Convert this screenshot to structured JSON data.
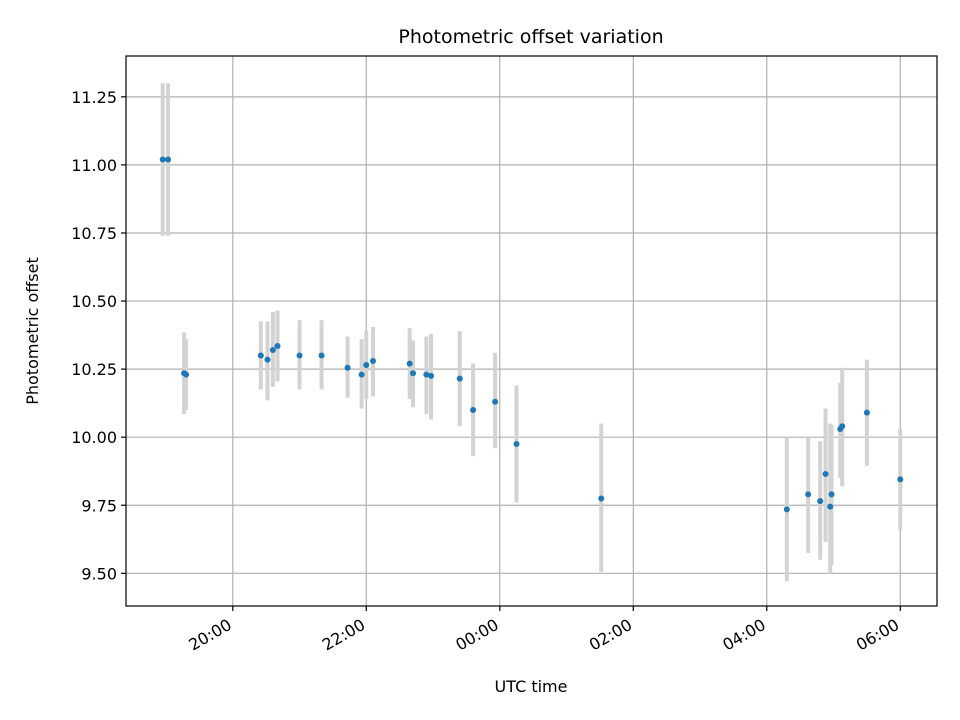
{
  "chart_data": {
    "type": "scatter",
    "title": "Photometric offset variation",
    "xlabel": "UTC time",
    "ylabel": "Photometric offset",
    "x_unit": "hours since 00:00 (negative = previous evening)",
    "xlim": [
      -5.6,
      6.55
    ],
    "ylim": [
      9.38,
      11.4
    ],
    "x_ticks": [
      {
        "value": -4,
        "label": "20:00"
      },
      {
        "value": -2,
        "label": "22:00"
      },
      {
        "value": 0,
        "label": "00:00"
      },
      {
        "value": 2,
        "label": "02:00"
      },
      {
        "value": 4,
        "label": "04:00"
      },
      {
        "value": 6,
        "label": "06:00"
      }
    ],
    "y_ticks": [
      {
        "value": 9.5,
        "label": "9.50"
      },
      {
        "value": 9.75,
        "label": "9.75"
      },
      {
        "value": 10.0,
        "label": "10.00"
      },
      {
        "value": 10.25,
        "label": "10.25"
      },
      {
        "value": 10.5,
        "label": "10.50"
      },
      {
        "value": 10.75,
        "label": "10.75"
      },
      {
        "value": 11.0,
        "label": "11.00"
      },
      {
        "value": 11.25,
        "label": "11.25"
      }
    ],
    "grid": true,
    "colors": {
      "point": "#1f77b4",
      "errorbar": "#d3d3d3",
      "grid": "#b0b0b0"
    },
    "points": [
      {
        "x": -5.05,
        "y": 11.02,
        "lo": 10.74,
        "hi": 11.3
      },
      {
        "x": -4.97,
        "y": 11.02,
        "lo": 10.74,
        "hi": 11.3
      },
      {
        "x": -4.73,
        "y": 10.235,
        "lo": 10.085,
        "hi": 10.385
      },
      {
        "x": -4.7,
        "y": 10.23,
        "lo": 10.1,
        "hi": 10.36
      },
      {
        "x": -3.58,
        "y": 10.3,
        "lo": 10.175,
        "hi": 10.425
      },
      {
        "x": -3.48,
        "y": 10.285,
        "lo": 10.135,
        "hi": 10.425
      },
      {
        "x": -3.4,
        "y": 10.32,
        "lo": 10.185,
        "hi": 10.46
      },
      {
        "x": -3.33,
        "y": 10.335,
        "lo": 10.205,
        "hi": 10.465
      },
      {
        "x": -3.0,
        "y": 10.3,
        "lo": 10.175,
        "hi": 10.43
      },
      {
        "x": -2.67,
        "y": 10.3,
        "lo": 10.175,
        "hi": 10.43
      },
      {
        "x": -2.28,
        "y": 10.255,
        "lo": 10.145,
        "hi": 10.37
      },
      {
        "x": -2.07,
        "y": 10.23,
        "lo": 10.105,
        "hi": 10.36
      },
      {
        "x": -2.0,
        "y": 10.265,
        "lo": 10.14,
        "hi": 10.39
      },
      {
        "x": -1.9,
        "y": 10.28,
        "lo": 10.15,
        "hi": 10.405
      },
      {
        "x": -1.35,
        "y": 10.27,
        "lo": 10.14,
        "hi": 10.4
      },
      {
        "x": -1.3,
        "y": 10.235,
        "lo": 10.11,
        "hi": 10.355
      },
      {
        "x": -1.1,
        "y": 10.23,
        "lo": 10.085,
        "hi": 10.37
      },
      {
        "x": -1.03,
        "y": 10.225,
        "lo": 10.065,
        "hi": 10.38
      },
      {
        "x": -0.6,
        "y": 10.215,
        "lo": 10.04,
        "hi": 10.39
      },
      {
        "x": -0.4,
        "y": 10.1,
        "lo": 9.93,
        "hi": 10.27
      },
      {
        "x": -0.07,
        "y": 10.13,
        "lo": 9.96,
        "hi": 10.31
      },
      {
        "x": 0.25,
        "y": 9.975,
        "lo": 9.76,
        "hi": 10.19
      },
      {
        "x": 1.52,
        "y": 9.775,
        "lo": 9.505,
        "hi": 10.05
      },
      {
        "x": 4.3,
        "y": 9.735,
        "lo": 9.47,
        "hi": 10.0
      },
      {
        "x": 4.62,
        "y": 9.79,
        "lo": 9.575,
        "hi": 10.0
      },
      {
        "x": 4.8,
        "y": 9.765,
        "lo": 9.55,
        "hi": 9.985
      },
      {
        "x": 4.88,
        "y": 9.865,
        "lo": 9.615,
        "hi": 10.105
      },
      {
        "x": 4.95,
        "y": 9.745,
        "lo": 9.5,
        "hi": 10.05
      },
      {
        "x": 4.97,
        "y": 9.79,
        "lo": 9.53,
        "hi": 10.045
      },
      {
        "x": 5.1,
        "y": 10.03,
        "lo": 9.85,
        "hi": 10.2
      },
      {
        "x": 5.13,
        "y": 10.04,
        "lo": 9.82,
        "hi": 10.255
      },
      {
        "x": 5.5,
        "y": 10.09,
        "lo": 9.895,
        "hi": 10.285
      },
      {
        "x": 6.0,
        "y": 9.845,
        "lo": 9.66,
        "hi": 10.03
      }
    ]
  }
}
